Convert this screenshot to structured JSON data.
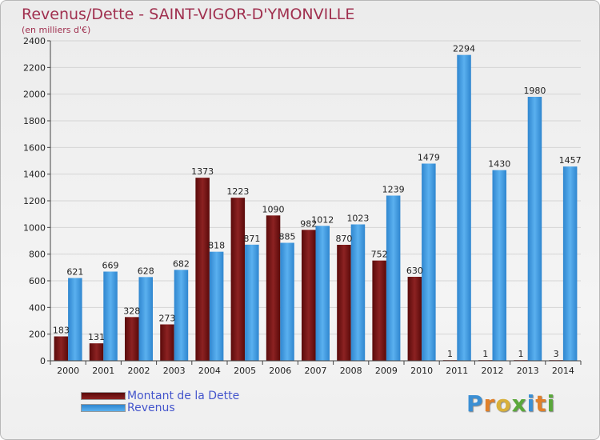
{
  "title": "Revenus/Dette - SAINT-VIGOR-D'YMONVILLE",
  "subtitle": "(en milliers d'€)",
  "logo_text": "Proxiti",
  "colors": {
    "dette": "#7a1515",
    "revenus": "#3d96dc",
    "title": "#a0304f"
  },
  "chart_data": {
    "type": "bar",
    "categories": [
      "2000",
      "2001",
      "2002",
      "2003",
      "2004",
      "2005",
      "2006",
      "2007",
      "2008",
      "2009",
      "2010",
      "2011",
      "2012",
      "2013",
      "2014"
    ],
    "series": [
      {
        "name": "Montant de la Dette",
        "values": [
          183,
          131,
          328,
          273,
          1373,
          1223,
          1090,
          982,
          870,
          752,
          630,
          1,
          1,
          1,
          3
        ]
      },
      {
        "name": "Revenus",
        "values": [
          621,
          669,
          628,
          682,
          818,
          871,
          885,
          1012,
          1023,
          1239,
          1479,
          2294,
          1430,
          1980,
          1457
        ]
      }
    ],
    "ylim": [
      0,
      2400
    ],
    "yticks": [
      0,
      200,
      400,
      600,
      800,
      1000,
      1200,
      1400,
      1600,
      1800,
      2000,
      2200,
      2400
    ],
    "grid": true,
    "legend": "bottom-left"
  }
}
